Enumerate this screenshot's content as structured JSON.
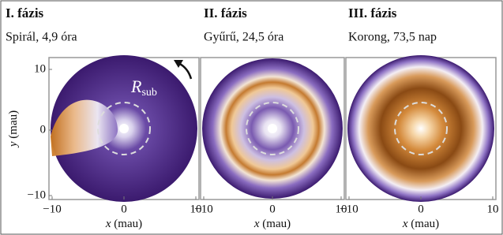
{
  "panels": [
    {
      "title": "I. fázis",
      "subtitle": "Spirál, 4,9 óra",
      "x_var": "x",
      "x_unit": "(mau)",
      "x_ticks": [
        "−10",
        "0",
        "10"
      ]
    },
    {
      "title": "II. fázis",
      "subtitle": "Gyűrű, 24,5 óra",
      "x_var": "x",
      "x_unit": "(mau)",
      "x_ticks": [
        "−10",
        "0",
        "10"
      ]
    },
    {
      "title": "III. fázis",
      "subtitle": "Korong, 73,5 nap",
      "x_var": "x",
      "x_unit": "(mau)",
      "x_ticks": [
        "−10",
        "0",
        "10"
      ]
    }
  ],
  "y_axis": {
    "var": "y",
    "unit": "(mau)",
    "ticks": [
      "10",
      "0",
      "−10"
    ]
  },
  "annotation": {
    "symbol": "R",
    "subscript": "sub"
  }
}
